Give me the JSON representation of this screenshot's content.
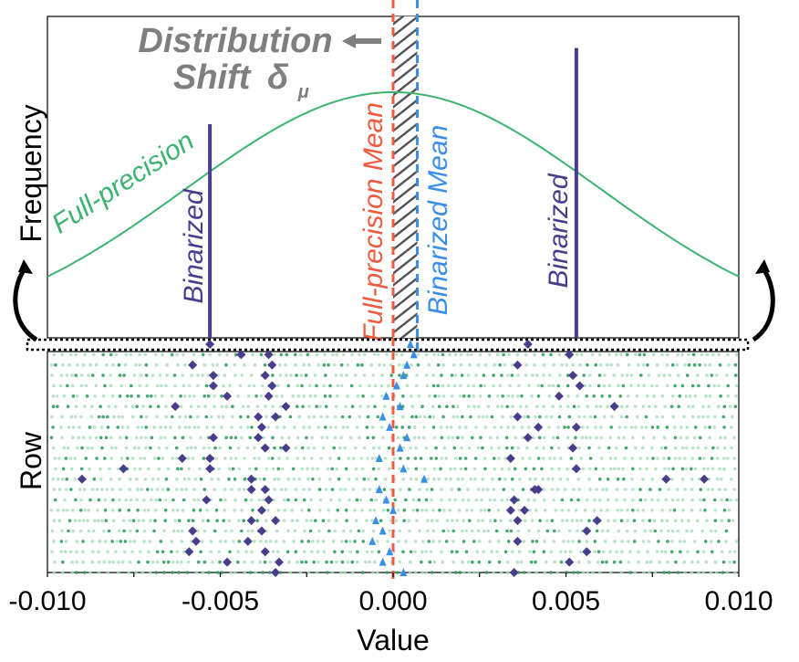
{
  "chart_data": {
    "type": "scatter",
    "title": "",
    "xlabel": "Value",
    "ylabel_top": "Frequency",
    "ylabel_bottom": "Row",
    "xlim": [
      -0.01,
      0.01
    ],
    "x_ticks": [
      -0.01,
      -0.005,
      0.0,
      0.005,
      0.01
    ],
    "x_tick_labels": [
      "-0.010",
      "-0.005",
      "0.000",
      "0.005",
      "0.010"
    ],
    "full_precision_curve": {
      "label": "Full-precision",
      "color": "#3cb371",
      "distribution": "gaussian",
      "mean": 0.0,
      "std": 0.006,
      "peak_relative": 1.0
    },
    "binarized_bars": [
      {
        "label": "Binarized",
        "x": -0.0053,
        "height_relative": 0.87
      },
      {
        "label": "Binarized",
        "x": 0.0053,
        "height_relative": 1.18
      }
    ],
    "binarized_color": "#483d8b",
    "full_precision_mean": {
      "label": "Full-precision Mean",
      "x": 0.0,
      "color": "#f05a40"
    },
    "binarized_mean": {
      "label": "Binarized Mean",
      "x": 0.0007,
      "color": "#3a8ee6"
    },
    "shift_annotation": {
      "line1": "Distribution",
      "line2": "Shift",
      "symbol": "δ",
      "subscript": "μ",
      "color": "#7f7f7f"
    },
    "row_plot": {
      "rows": 23,
      "weight_color": "#3cb371",
      "binarized_diamonds": [
        [
          -0.0053,
          0.0039
        ],
        [
          -0.0044,
          -0.0036,
          0.0051
        ],
        [
          -0.0058,
          -0.0035,
          0.0036
        ],
        [
          -0.0052,
          -0.0037,
          0.0052
        ],
        [
          -0.0052,
          -0.0035,
          0.0054
        ],
        [
          -0.0048,
          -0.0036,
          0.0048
        ],
        [
          -0.0063,
          -0.0031,
          0.0064
        ],
        [
          -0.0039,
          -0.0034,
          0.0036
        ],
        [
          -0.0038,
          0.0042,
          0.0053
        ],
        [
          -0.0052,
          -0.0039,
          0.0039
        ],
        [
          -0.0037,
          -0.0031,
          0.0052
        ],
        [
          -0.0053,
          -0.0061,
          0.0034
        ],
        [
          -0.0078,
          -0.0053,
          0.0053
        ],
        [
          -0.009,
          -0.0041,
          0.009,
          0.0079
        ],
        [
          -0.0041,
          -0.0037,
          0.0042,
          0.0041
        ],
        [
          -0.0054,
          -0.0036,
          0.0035
        ],
        [
          -0.0038,
          0.0034,
          0.0038
        ],
        [
          -0.0034,
          -0.0041,
          0.0036,
          0.0059
        ],
        [
          -0.0058,
          -0.0038,
          0.0056
        ],
        [
          -0.0057,
          -0.0042,
          0.0036
        ],
        [
          -0.0037,
          -0.0059,
          0.0056
        ],
        [
          -0.0048,
          -0.0033,
          0.0051
        ],
        [
          -0.0034,
          0.0035
        ]
      ],
      "binarized_means": [
        0.0005,
        0.0006,
        0.0004,
        0.0003,
        0.0001,
        -0.0002,
        0.0002,
        -0.0003,
        -0.0001,
        0.0004,
        0.0002,
        -0.0004,
        0.0003,
        0.0009,
        -0.0004,
        -0.0002,
        0.0,
        -0.0005,
        -0.0003,
        -0.0006,
        -0.0001,
        -0.0003,
        0.0003
      ]
    }
  }
}
